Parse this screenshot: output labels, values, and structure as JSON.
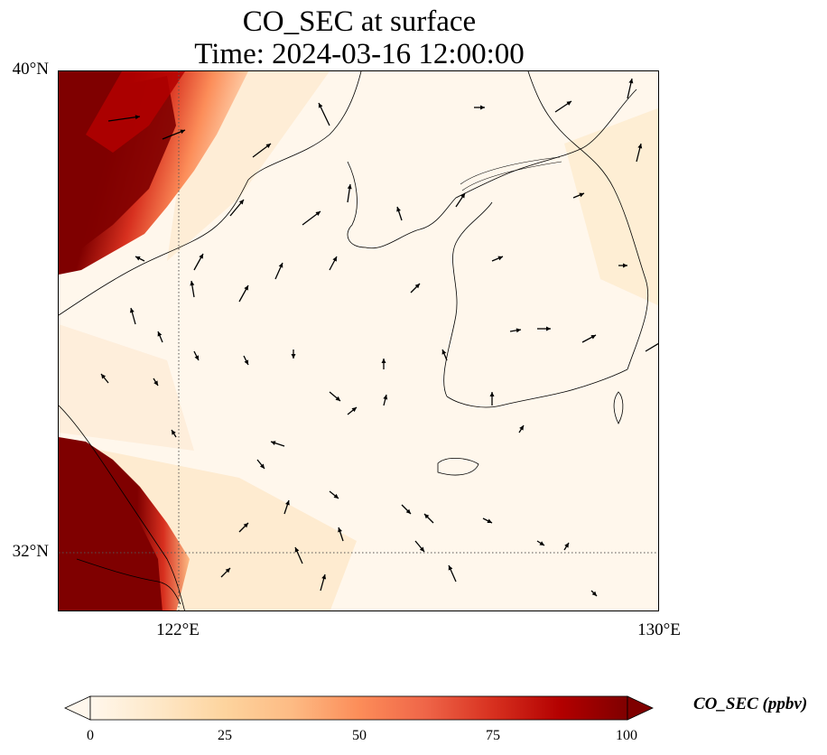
{
  "title_line1": "CO_SEC at surface",
  "title_line2": "Time: 2024-03-16 12:00:00",
  "map": {
    "lat_range": [
      31.2,
      40.0
    ],
    "lon_range": [
      120.0,
      130.0
    ],
    "lat_ticks": [
      "40°N",
      "32°N"
    ],
    "lon_ticks": [
      "122°E",
      "130°E"
    ],
    "gridlines": {
      "lat": 32,
      "lon": 122,
      "style": "dotted"
    },
    "colormap": "OrRd",
    "high_concentration_regions": [
      "northwest corner near 120-122°E, 36-40°N",
      "southwest corner near 120-122°E, 31.2-33°N"
    ]
  },
  "colorbar": {
    "ticks": [
      "0",
      "25",
      "50",
      "75",
      "100"
    ],
    "label": "CO_SEC (ppbv)",
    "min": 0,
    "max": 100,
    "extend": "both",
    "colors": [
      "#fff7ec",
      "#fee8c8",
      "#fdd49e",
      "#fdbb84",
      "#fc8d59",
      "#ef6548",
      "#d7301f",
      "#b30000",
      "#7f0000"
    ]
  },
  "wind_vectors_present": true
}
